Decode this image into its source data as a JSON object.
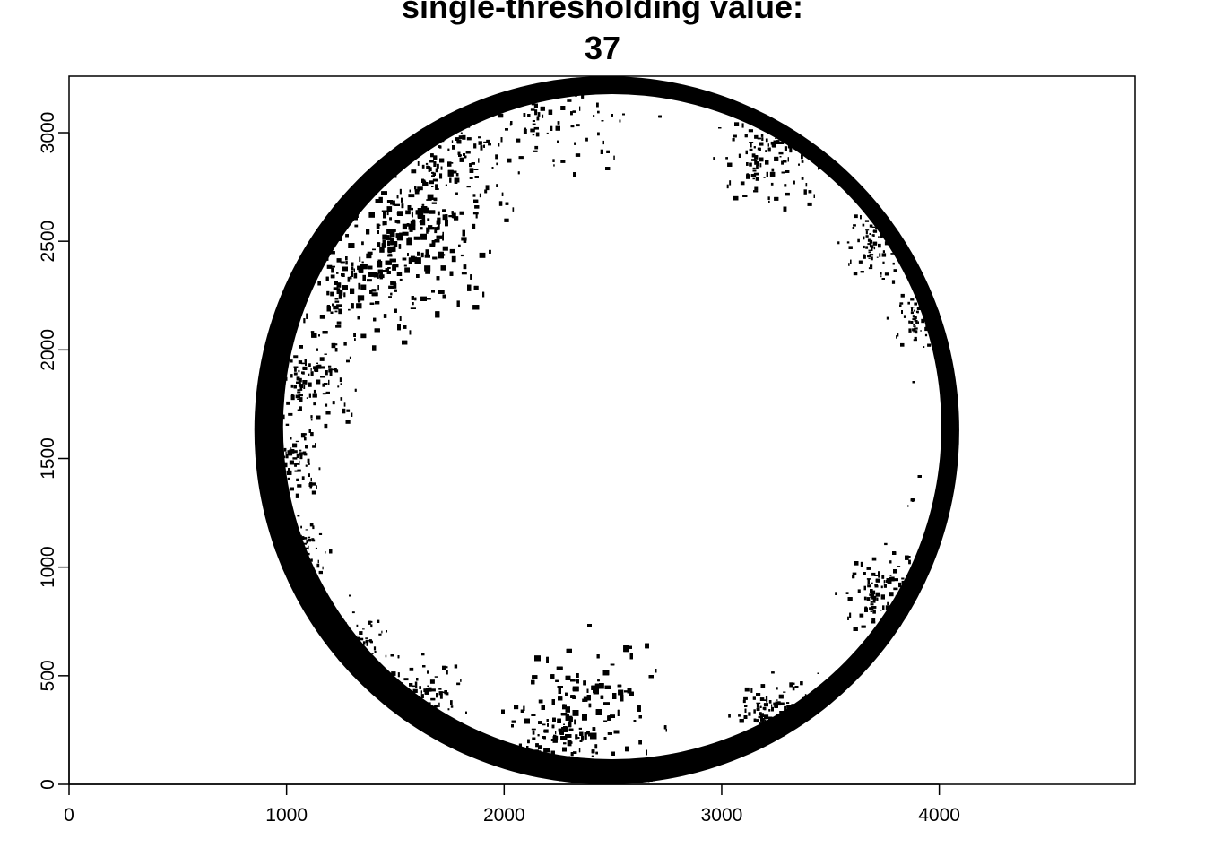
{
  "chart_data": {
    "type": "heatmap",
    "title_lines": [
      "single-thresholding value:",
      "37"
    ],
    "xlabel": "",
    "ylabel": "",
    "xlim": [
      0,
      4900
    ],
    "ylim": [
      0,
      3260
    ],
    "x_ticks": [
      0,
      1000,
      2000,
      3000,
      4000
    ],
    "y_ticks": [
      0,
      500,
      1000,
      1500,
      2000,
      2500,
      3000
    ],
    "x_tick_labels": [
      "0",
      "1000",
      "2000",
      "3000",
      "4000"
    ],
    "y_tick_labels": [
      "0",
      "500",
      "1000",
      "1500",
      "2000",
      "2500",
      "3000"
    ],
    "grid": false,
    "legend": "none",
    "image": {
      "kind": "binary-thresholded-hemispherical-photo",
      "threshold": 37,
      "circle_center_x": 2472,
      "circle_center_y": 1630,
      "circle_radius_x": 1620,
      "circle_radius_y": 1630,
      "colors": {
        "foreground": "#000000",
        "background": "#ffffff"
      }
    }
  }
}
